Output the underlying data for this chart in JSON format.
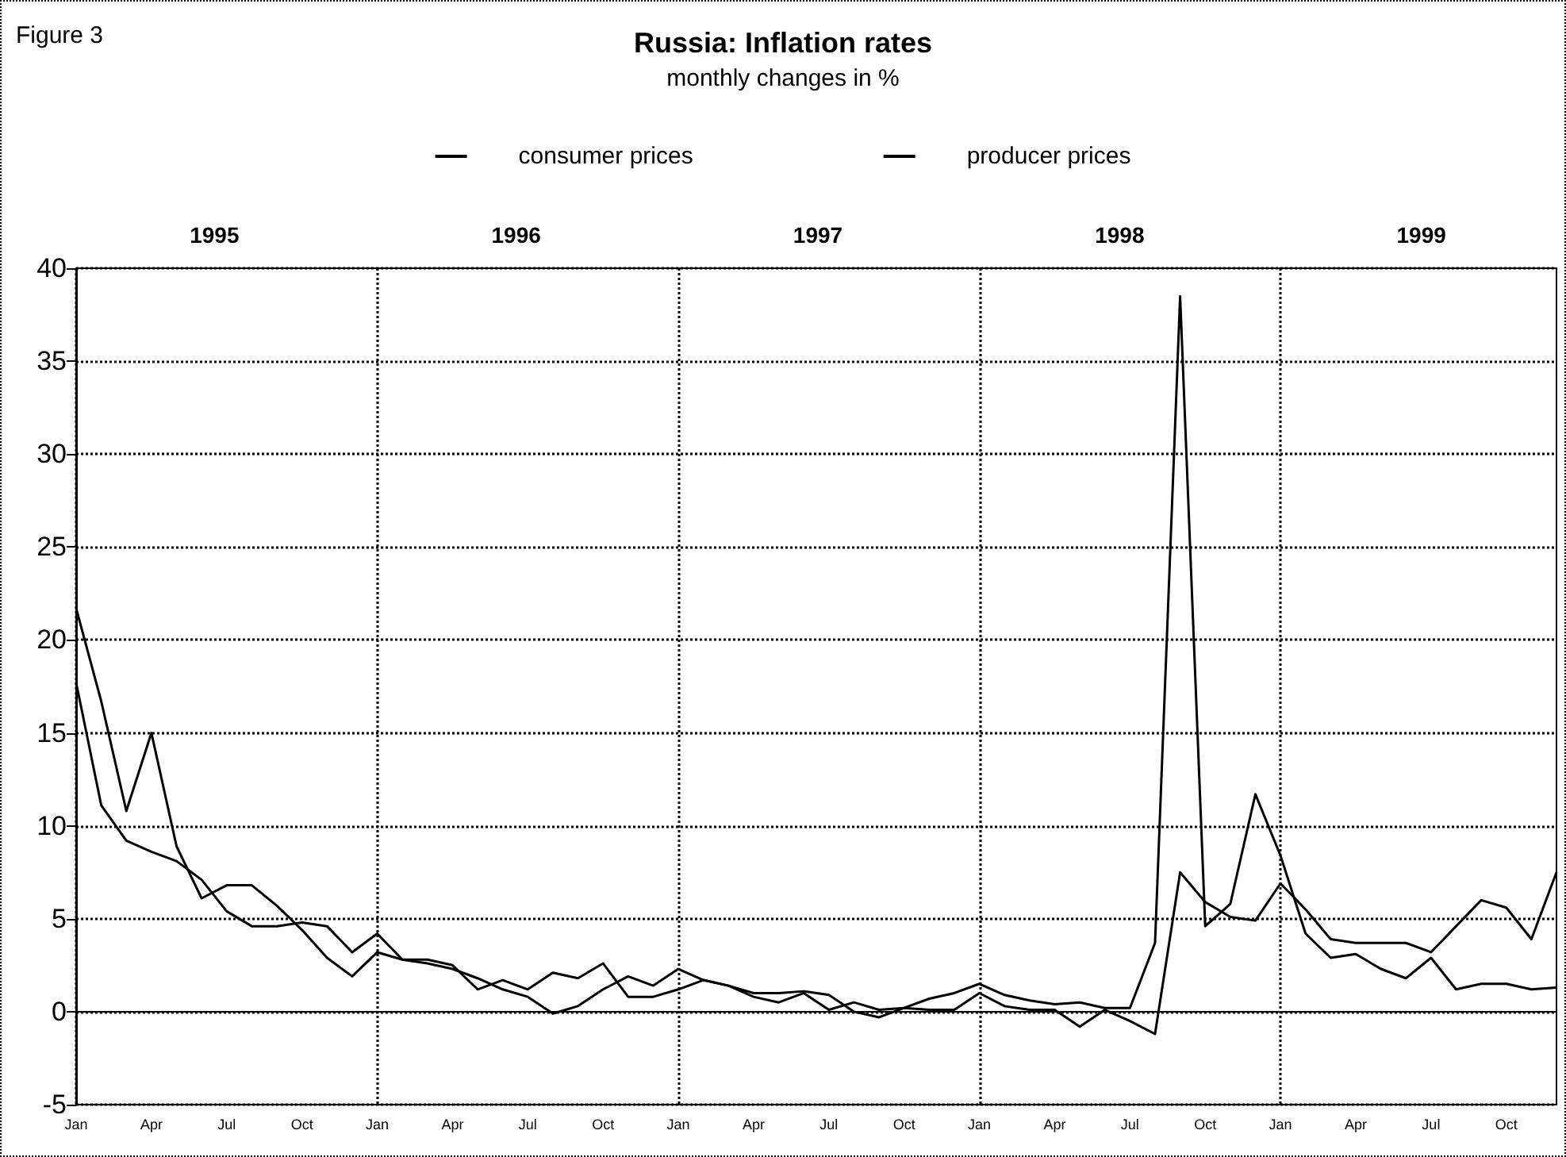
{
  "chart_data": {
    "type": "line",
    "title": "Russia: Inflation rates",
    "subtitle": "monthly changes in %",
    "annotations": [
      "Figure 3",
      "1995",
      "1996",
      "1997",
      "1998",
      "1999"
    ],
    "categories": [
      "Jan",
      null,
      null,
      "Apr",
      null,
      null,
      "Jul",
      null,
      null,
      "Oct",
      null,
      null,
      "Jan",
      null,
      null,
      "Apr",
      null,
      null,
      "Jul",
      null,
      null,
      "Oct",
      null,
      null,
      "Jan",
      null,
      null,
      "Apr",
      null,
      null,
      "Jul",
      null,
      null,
      "Oct",
      null,
      null,
      "Jan",
      null,
      null,
      "Apr",
      null,
      null,
      "Jul",
      null,
      null,
      "Oct",
      null,
      null,
      "Jan",
      null,
      null,
      "Apr",
      null,
      null,
      "Jul",
      null,
      null,
      "Oct",
      null,
      null
    ],
    "series": [
      {
        "name": "consumer prices",
        "color": "#000000",
        "values": [
          17.7,
          11.1,
          9.2,
          8.6,
          8.1,
          7.1,
          5.4,
          4.6,
          4.6,
          4.8,
          4.6,
          3.2,
          4.2,
          2.8,
          2.6,
          2.3,
          1.8,
          1.2,
          0.8,
          -0.1,
          0.3,
          1.2,
          1.9,
          1.4,
          2.3,
          1.7,
          1.4,
          1.0,
          1.0,
          1.1,
          0.9,
          0.0,
          -0.3,
          0.2,
          0.7,
          1.0,
          1.5,
          0.9,
          0.6,
          0.4,
          0.5,
          0.2,
          0.2,
          3.7,
          38.5,
          4.6,
          5.8,
          11.7,
          8.4,
          4.2,
          2.9,
          3.1,
          2.3,
          1.8,
          2.9,
          1.2,
          1.5,
          1.5,
          1.2,
          1.3
        ]
      },
      {
        "name": "producer prices",
        "color": "#000000",
        "values": [
          21.7,
          16.7,
          10.8,
          15.0,
          8.9,
          6.1,
          6.8,
          6.8,
          5.7,
          4.4,
          2.9,
          1.9,
          3.2,
          2.8,
          2.8,
          2.5,
          1.2,
          1.7,
          1.2,
          2.1,
          1.8,
          2.6,
          0.8,
          0.8,
          1.2,
          1.7,
          1.4,
          0.8,
          0.5,
          1.0,
          0.1,
          0.5,
          0.1,
          0.2,
          0.1,
          0.1,
          1.0,
          0.3,
          0.1,
          0.1,
          -0.8,
          0.1,
          -0.5,
          -1.2,
          7.5,
          5.9,
          5.1,
          4.9,
          6.9,
          5.5,
          3.9,
          3.7,
          3.7,
          3.7,
          3.2,
          4.6,
          6.0,
          5.6,
          3.9,
          7.5
        ]
      }
    ],
    "ylim": [
      -5,
      40
    ],
    "yticks": [
      -5,
      0,
      5,
      10,
      15,
      20,
      25,
      30,
      35,
      40
    ],
    "grid": true,
    "legend": "top",
    "marker": "none",
    "line_style": "solid"
  }
}
